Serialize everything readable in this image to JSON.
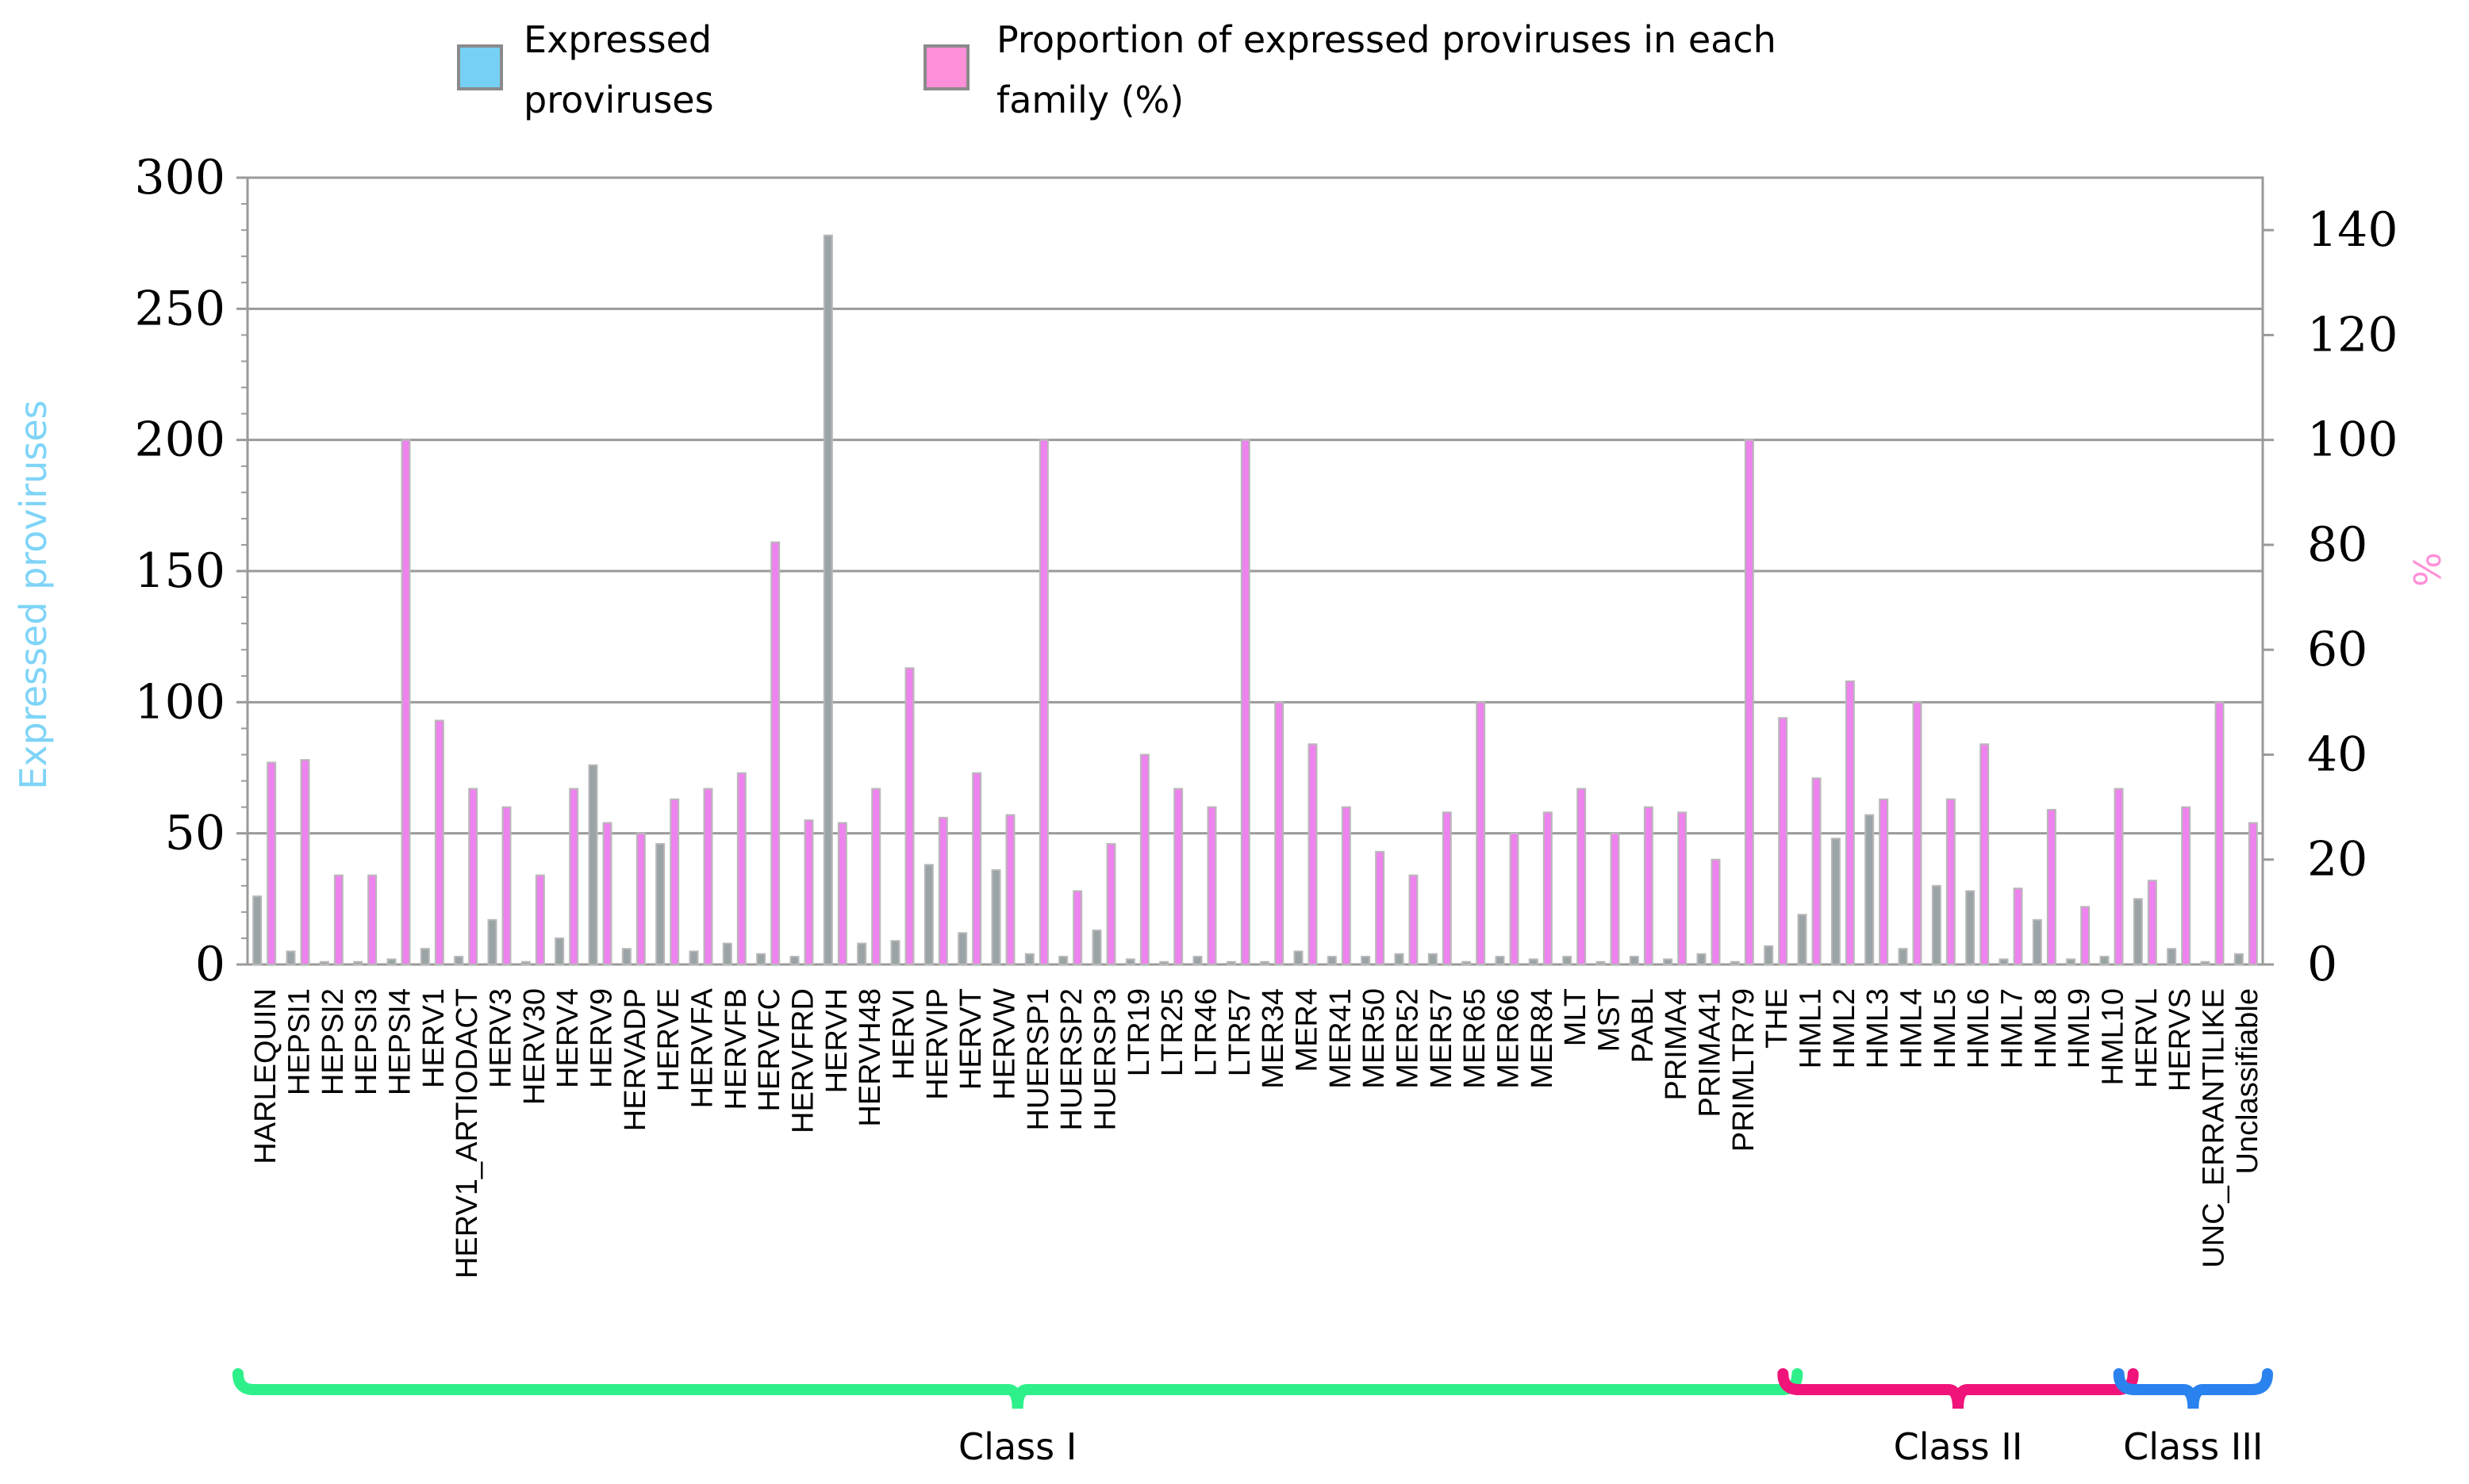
{
  "chart_data": {
    "type": "bar",
    "title": "",
    "categories": [
      "HARLEQUIN",
      "HEPSI1",
      "HEPSI2",
      "HEPSI3",
      "HEPSI4",
      "HERV1",
      "HERV1_ARTIODACT",
      "HERV3",
      "HERV30",
      "HERV4",
      "HERV9",
      "HERVADP",
      "HERVE",
      "HERVFA",
      "HERVFB",
      "HERVFC",
      "HERVFRD",
      "HERVH",
      "HERVH48",
      "HERVI",
      "HERVIP",
      "HERVT",
      "HERVW",
      "HUERSP1",
      "HUERSP2",
      "HUERSP3",
      "LTR19",
      "LTR25",
      "LTR46",
      "LTR57",
      "MER34",
      "MER4",
      "MER41",
      "MER50",
      "MER52",
      "MER57",
      "MER65",
      "MER66",
      "MER84",
      "MLT",
      "MST",
      "PABL",
      "PRIMA4",
      "PRIMA41",
      "PRIMLTR79",
      "THE",
      "HML1",
      "HML2",
      "HML3",
      "HML4",
      "HML5",
      "HML6",
      "HML7",
      "HML8",
      "HML9",
      "HML10",
      "HERVL",
      "HERVS",
      "UNC_ERRANTILIKE",
      "Unclassifiable"
    ],
    "series": [
      {
        "name": "Expressed proviruses",
        "axis": "left",
        "color": "#9aa3a6",
        "values": [
          26,
          5,
          1,
          1,
          2,
          6,
          3,
          17,
          1,
          10,
          76,
          6,
          46,
          5,
          8,
          4,
          3,
          278,
          8,
          9,
          38,
          12,
          36,
          4,
          3,
          13,
          2,
          1,
          3,
          1,
          1,
          5,
          3,
          3,
          4,
          4,
          1,
          3,
          2,
          3,
          1,
          3,
          2,
          4,
          1,
          7,
          19,
          48,
          57,
          6,
          30,
          28,
          2,
          17,
          2,
          3,
          25,
          6,
          1,
          4
        ]
      },
      {
        "name": "Proportion of expressed proviruses in each family (%)",
        "axis": "right",
        "color": "#ee82ee",
        "values": [
          38.5,
          39,
          17,
          17,
          100,
          46.5,
          33.5,
          30,
          17,
          33.5,
          27,
          25,
          31.5,
          33.5,
          36.5,
          80.5,
          27.5,
          27,
          33.5,
          56.5,
          28,
          36.5,
          28.5,
          100,
          14,
          23,
          40,
          33.5,
          30,
          100,
          50,
          42,
          30,
          21.5,
          17,
          29,
          50,
          25,
          29,
          33.5,
          25,
          30,
          29,
          20,
          100,
          47,
          35.5,
          54,
          31.5,
          50,
          31.5,
          42,
          14.5,
          29.5,
          11,
          33.5,
          16,
          30,
          50,
          27
        ]
      }
    ],
    "ylabel_left": "Expressed proviruses",
    "ylabel_right": "%",
    "ylim_left": [
      0,
      300
    ],
    "ylim_right": [
      0,
      150
    ],
    "yticks_left": [
      "0",
      "50",
      "100",
      "150",
      "200",
      "250",
      "300"
    ],
    "yticks_right": [
      "0",
      "20",
      "40",
      "60",
      "80",
      "100",
      "120",
      "140"
    ],
    "legend": {
      "position": "top",
      "items": [
        {
          "lines": [
            "Expressed",
            "proviruses"
          ],
          "swatch": "#76d0f5"
        },
        {
          "lines": [
            "Proportion of expressed proviruses in each",
            "family (%)"
          ],
          "swatch": "#ff8fd8"
        }
      ]
    },
    "groups": [
      {
        "label": "Class I",
        "from": 0,
        "to": 45,
        "color": "#2ef08a"
      },
      {
        "label": "Class II",
        "from": 46,
        "to": 55,
        "color": "#f0147a"
      },
      {
        "label": "Class III",
        "from": 56,
        "to": 59,
        "color": "#2a82ee"
      }
    ],
    "grid": true
  },
  "colors": {
    "left_axis_title": "#7fd4f7",
    "right_axis_title": "#ff8fd8",
    "bar_fill_left": "#9aa3a6",
    "bar_fill_right": "#ee82ee",
    "bar_stroke": "#b8b8b8",
    "grid": "#9a9a9a"
  }
}
